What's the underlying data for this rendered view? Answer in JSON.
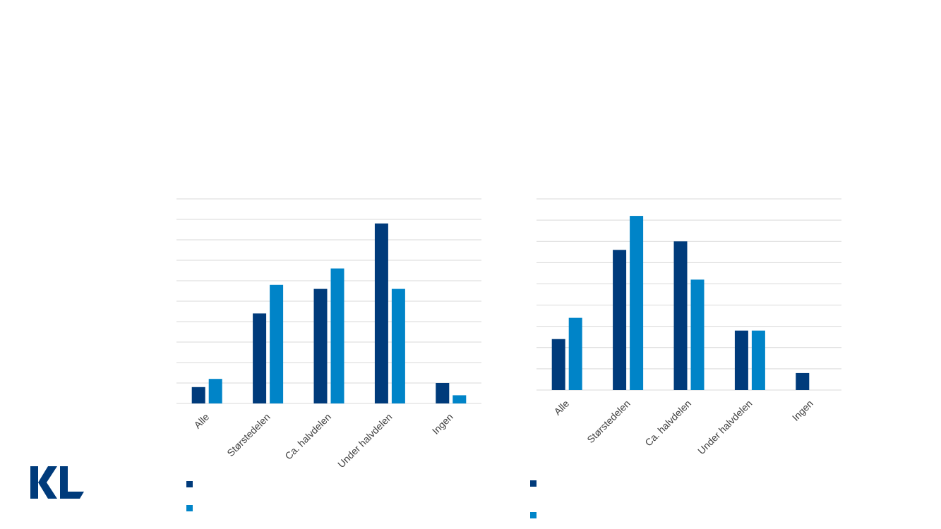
{
  "colors": {
    "series_dark": "#003b7b",
    "series_light": "#0084c8",
    "logo": "#003b7b"
  },
  "logo": {
    "text": "KL"
  },
  "chart_data": [
    {
      "type": "bar",
      "categories": [
        "Alle",
        "Størstedelen",
        "Ca. halvdelen",
        "Under halvdelen",
        "Ingen"
      ],
      "series": [
        {
          "values": [
            0.8,
            4.4,
            5.6,
            8.8,
            1.0
          ]
        },
        {
          "values": [
            1.2,
            5.8,
            6.6,
            5.6,
            0.4
          ]
        }
      ],
      "ylim": [
        0,
        10
      ],
      "grid": true,
      "legend": "bottom"
    },
    {
      "type": "bar",
      "categories": [
        "Alle",
        "Størstedelen",
        "Ca. halvdelen",
        "Under halvdelen",
        "Ingen"
      ],
      "series": [
        {
          "values": [
            2.4,
            6.6,
            7.0,
            2.8,
            0.8
          ]
        },
        {
          "values": [
            3.4,
            8.2,
            5.2,
            2.8,
            0
          ]
        }
      ],
      "ylim": [
        0,
        9
      ],
      "grid": true,
      "legend": "bottom"
    }
  ]
}
